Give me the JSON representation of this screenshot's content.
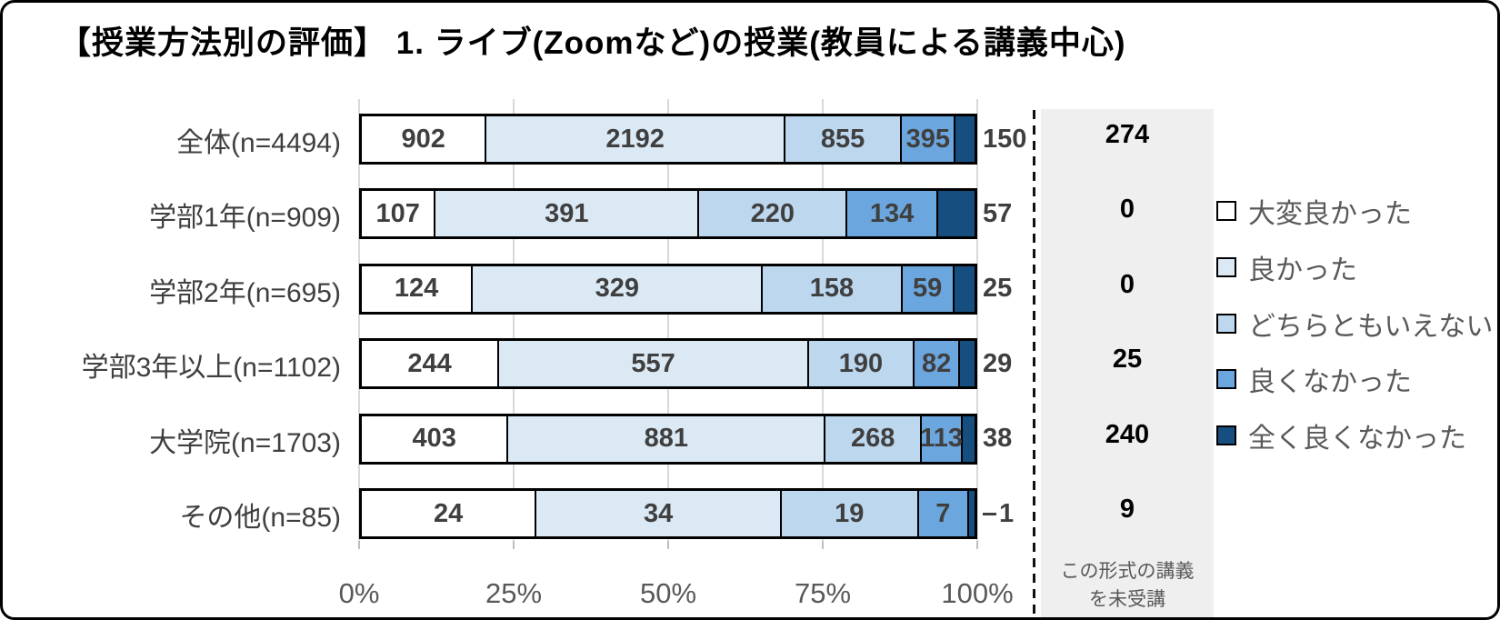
{
  "title": "【授業方法別の評価】 1. ライブ(Zoomなど)の授業(教員による講義中心)",
  "colors": {
    "gridline": "#d9d9d9",
    "panel_background": "#efefef",
    "bar_border": "#000000",
    "value_text": "#3f3f3f",
    "axis_text": "#595959",
    "panel_value_text": "#000000"
  },
  "chart_data": {
    "type": "bar",
    "orientation": "horizontal",
    "stacked": "percent",
    "title": "【授業方法別の評価】 1. ライブ(Zoomなど)の授業(教員による講義中心)",
    "categories": [
      "全体(n=4494)",
      "学部1年(n=909)",
      "学部2年(n=695)",
      "学部3年以上(n=1102)",
      "大学院(n=1703)",
      "その他(n=85)"
    ],
    "series": [
      {
        "name": "大変良かった",
        "color": "#ffffff",
        "values": [
          902,
          107,
          124,
          244,
          403,
          24
        ]
      },
      {
        "name": "良かった",
        "color": "#dbe9f5",
        "values": [
          2192,
          391,
          329,
          557,
          881,
          34
        ]
      },
      {
        "name": "どちらともいえない",
        "color": "#bdd7ee",
        "values": [
          855,
          220,
          158,
          190,
          268,
          19
        ]
      },
      {
        "name": "良くなかった",
        "color": "#6ca6de",
        "values": [
          395,
          134,
          59,
          82,
          113,
          7
        ]
      },
      {
        "name": "全く良くなかった",
        "color": "#164f7f",
        "values": [
          150,
          57,
          25,
          29,
          38,
          1
        ]
      }
    ],
    "inside_label_series_count": 4,
    "outside_label_series": "全く良くなかった",
    "leader_dash_rows": [
      5
    ],
    "x_axis": {
      "ticks": [
        "0%",
        "25%",
        "50%",
        "75%",
        "100%"
      ],
      "range": [
        0,
        100
      ],
      "gridlines": true
    },
    "legend_position": "right",
    "not_attended_panel": {
      "values": [
        274,
        0,
        0,
        25,
        240,
        9
      ],
      "footer_line1": "この形式の講義",
      "footer_line2": "を未受講"
    }
  }
}
